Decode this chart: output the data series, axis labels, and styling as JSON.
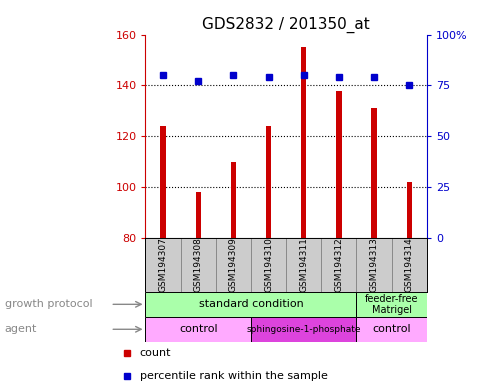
{
  "title": "GDS2832 / 201350_at",
  "samples": [
    "GSM194307",
    "GSM194308",
    "GSM194309",
    "GSM194310",
    "GSM194311",
    "GSM194312",
    "GSM194313",
    "GSM194314"
  ],
  "counts": [
    124,
    98,
    110,
    124,
    155,
    138,
    131,
    102
  ],
  "percentile_ranks": [
    80,
    77,
    80,
    79,
    80,
    79,
    79,
    75
  ],
  "ylim_left": [
    80,
    160
  ],
  "ylim_right": [
    0,
    100
  ],
  "yticks_left": [
    80,
    100,
    120,
    140,
    160
  ],
  "yticks_right": [
    0,
    25,
    50,
    75,
    100
  ],
  "ytick_labels_right": [
    "0",
    "25",
    "50",
    "75",
    "100%"
  ],
  "bar_color": "#cc0000",
  "dot_color": "#0000cc",
  "sample_box_color": "#cccccc",
  "background_color": "#ffffff"
}
